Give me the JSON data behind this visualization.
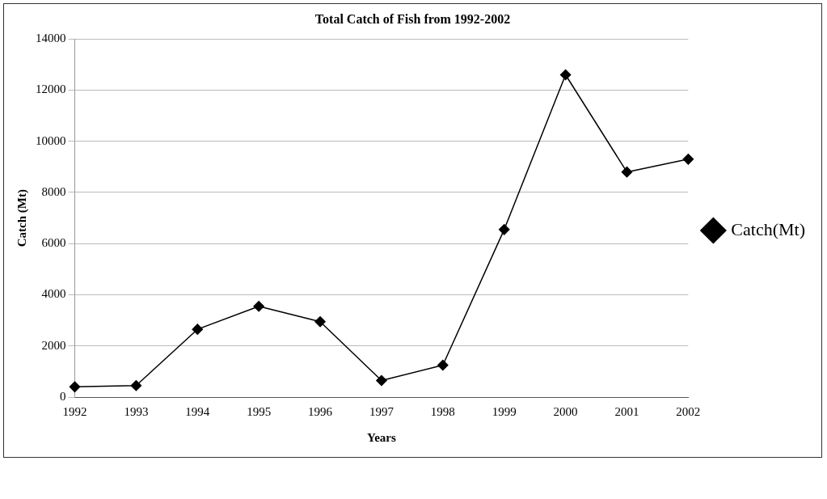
{
  "chart_data": {
    "type": "line",
    "title": "Total Catch of Fish from 1992-2002",
    "xlabel": "Years",
    "ylabel": "Catch (Mt)",
    "categories": [
      "1992",
      "1993",
      "1994",
      "1995",
      "1996",
      "1997",
      "1998",
      "1999",
      "2000",
      "2001",
      "2002"
    ],
    "series": [
      {
        "name": "Catch(Mt)",
        "color": "#000000",
        "values": [
          400,
          450,
          2650,
          3550,
          2950,
          650,
          1250,
          6550,
          12600,
          8800,
          9300
        ]
      }
    ],
    "ylim": [
      0,
      14000
    ],
    "yticks": [
      0,
      2000,
      4000,
      6000,
      8000,
      10000,
      12000,
      14000
    ],
    "grid": "y",
    "legend": "right",
    "marker": "diamond",
    "line_style": "solid"
  }
}
